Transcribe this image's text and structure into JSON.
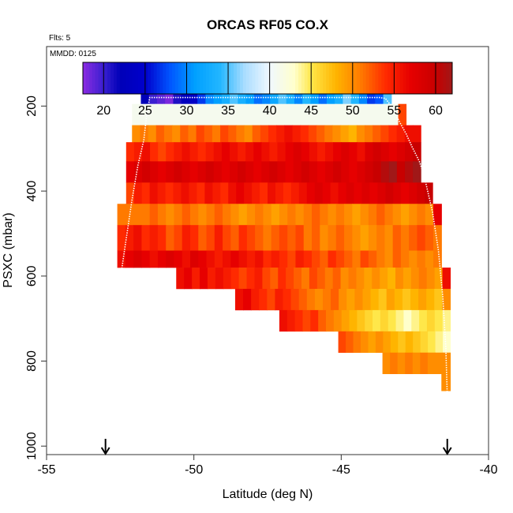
{
  "chart_data": {
    "type": "heatmap",
    "title": "ORCAS RF05 CO.X",
    "flights_label": "Flts: 5",
    "date_label": "MMDD: 0125",
    "xlabel": "Latitude (deg N)",
    "ylabel": "PSXC (mbar)",
    "xlim": [
      -55,
      -40
    ],
    "ylim": [
      1020,
      60
    ],
    "x_ticks": [
      -55,
      -50,
      -45,
      -40
    ],
    "y_ticks": [
      200,
      400,
      600,
      800,
      1000
    ],
    "colorbar": {
      "range": [
        17.5,
        62
      ],
      "ticks": [
        20,
        25,
        30,
        35,
        40,
        45,
        50,
        55,
        60
      ],
      "stops": [
        {
          "v": 17.5,
          "c": "#8B2BE2"
        },
        {
          "v": 20,
          "c": "#3A1FD0"
        },
        {
          "v": 22,
          "c": "#0000B8"
        },
        {
          "v": 25,
          "c": "#0000CC"
        },
        {
          "v": 28,
          "c": "#0055FF"
        },
        {
          "v": 31,
          "c": "#00A0FF"
        },
        {
          "v": 34,
          "c": "#22B6FF"
        },
        {
          "v": 37,
          "c": "#AADDFF"
        },
        {
          "v": 40,
          "c": "#F0F8FF"
        },
        {
          "v": 43,
          "c": "#FFFFCC"
        },
        {
          "v": 45,
          "c": "#FFE74A"
        },
        {
          "v": 48,
          "c": "#FFB400"
        },
        {
          "v": 51,
          "c": "#FF7A00"
        },
        {
          "v": 54,
          "c": "#FF2A00"
        },
        {
          "v": 57,
          "c": "#E60000"
        },
        {
          "v": 60,
          "c": "#C80000"
        },
        {
          "v": 62,
          "c": "#A01818"
        }
      ]
    },
    "arrows_at_latitude": [
      -53.0,
      -41.4
    ],
    "bands": [
      {
        "p": [
          165,
          195
        ],
        "lat_range": [
          -51.8,
          -43.3
        ],
        "values": [
          22,
          20,
          19,
          18,
          21,
          23,
          24,
          27,
          30,
          31,
          33,
          35,
          33,
          31,
          29,
          30,
          32,
          35,
          33,
          30,
          34,
          31,
          29,
          31,
          33,
          36,
          34,
          30,
          27,
          28,
          35
        ]
      },
      {
        "p": [
          195,
          245
        ],
        "lat_range": [
          -52.1,
          -42.8
        ],
        "values": [
          41,
          41,
          41,
          41,
          41,
          41,
          41,
          41,
          41,
          41,
          41,
          41,
          41,
          41,
          41,
          41,
          41,
          41,
          41,
          41,
          41,
          41,
          41,
          41,
          41,
          41,
          41,
          41,
          41,
          41,
          41,
          41,
          41,
          41,
          53
        ]
      },
      {
        "p": [
          245,
          285
        ],
        "lat_range": [
          -52.1,
          -42.3
        ],
        "values": [
          50,
          51,
          50,
          52,
          51,
          50,
          52,
          51,
          53,
          52,
          51,
          53,
          52,
          51,
          50,
          52,
          53,
          54,
          55,
          56,
          55,
          54,
          53,
          52,
          51,
          50,
          49,
          48,
          50,
          51,
          52,
          53,
          54,
          55,
          56,
          56
        ]
      },
      {
        "p": [
          285,
          330
        ],
        "lat_range": [
          -52.3,
          -42.3
        ],
        "values": [
          54,
          55,
          56,
          54,
          53,
          54,
          55,
          56,
          55,
          54,
          55,
          56,
          57,
          56,
          55,
          56,
          57,
          56,
          55,
          56,
          57,
          58,
          57,
          56,
          55,
          56,
          57,
          58,
          57,
          56,
          58,
          59,
          58,
          57,
          58,
          59,
          60
        ]
      },
      {
        "p": [
          330,
          380
        ],
        "lat_range": [
          -52.3,
          -42.3
        ],
        "values": [
          57,
          58,
          59,
          58,
          57,
          58,
          59,
          58,
          57,
          58,
          59,
          58,
          57,
          58,
          59,
          58,
          57,
          58,
          59,
          58,
          57,
          58,
          59,
          58,
          57,
          58,
          59,
          58,
          57,
          58,
          59,
          60,
          61,
          62,
          60,
          61,
          62
        ]
      },
      {
        "p": [
          380,
          430
        ],
        "lat_range": [
          -52.3,
          -41.9
        ],
        "values": [
          53,
          55,
          54,
          56,
          55,
          54,
          55,
          56,
          55,
          54,
          56,
          55,
          54,
          56,
          57,
          56,
          55,
          54,
          56,
          55,
          54,
          55,
          56,
          57,
          58,
          57,
          56,
          57,
          58,
          57,
          58,
          57,
          58,
          59,
          58,
          57,
          58,
          59,
          60
        ]
      },
      {
        "p": [
          430,
          480
        ],
        "lat_range": [
          -52.6,
          -41.6
        ],
        "values": [
          51,
          51,
          51,
          51,
          52,
          51,
          50,
          51,
          52,
          51,
          50,
          51,
          52,
          51,
          50,
          49,
          50,
          51,
          50,
          49,
          50,
          51,
          50,
          51,
          52,
          51,
          50,
          51,
          50,
          49,
          50,
          51,
          52,
          51,
          50,
          49,
          50,
          51,
          50,
          57
        ]
      },
      {
        "p": [
          480,
          540
        ],
        "lat_range": [
          -52.6,
          -41.6
        ],
        "values": [
          54,
          55,
          56,
          54,
          55,
          54,
          52,
          53,
          55,
          54,
          52,
          53,
          55,
          53,
          52,
          54,
          53,
          52,
          51,
          52,
          53,
          52,
          53,
          51,
          52,
          50,
          51,
          52,
          51,
          50,
          49,
          50,
          51,
          50,
          52,
          51,
          52,
          53,
          52,
          51
        ]
      },
      {
        "p": [
          540,
          580
        ],
        "lat_range": [
          -52.6,
          -41.6
        ],
        "values": [
          56,
          57,
          58,
          57,
          56,
          57,
          58,
          57,
          56,
          58,
          57,
          56,
          55,
          56,
          57,
          56,
          55,
          56,
          54,
          55,
          54,
          53,
          55,
          54,
          53,
          52,
          54,
          53,
          52,
          51,
          53,
          52,
          51,
          50,
          52,
          51,
          50,
          51,
          50,
          51
        ]
      },
      {
        "p": [
          580,
          630
        ],
        "lat_range": [
          -50.6,
          -41.3
        ],
        "values": [
          56,
          57,
          55,
          57,
          55,
          56,
          55,
          54,
          53,
          54,
          55,
          53,
          52,
          54,
          53,
          52,
          51,
          53,
          52,
          51,
          52,
          50,
          51,
          50,
          49,
          50,
          49,
          48,
          50,
          49,
          50,
          51,
          50,
          49,
          56
        ]
      },
      {
        "p": [
          630,
          680
        ],
        "lat_range": [
          -48.6,
          -41.3
        ],
        "values": [
          56,
          57,
          55,
          54,
          53,
          55,
          54,
          53,
          52,
          51,
          50,
          51,
          52,
          50,
          49,
          50,
          49,
          48,
          47,
          49,
          48,
          47,
          48,
          49,
          48,
          47,
          50
        ]
      },
      {
        "p": [
          680,
          730
        ],
        "lat_range": [
          -47.1,
          -41.3
        ],
        "values": [
          56,
          55,
          54,
          53,
          54,
          52,
          51,
          50,
          49,
          48,
          47,
          46,
          45,
          46,
          45,
          44,
          43,
          44,
          45,
          46,
          45,
          44
        ]
      },
      {
        "p": [
          730,
          780
        ],
        "lat_range": [
          -45.1,
          -41.3
        ],
        "values": [
          53,
          52,
          51,
          50,
          49,
          50,
          49,
          48,
          47,
          48,
          47,
          46,
          45,
          44,
          43
        ]
      },
      {
        "p": [
          780,
          830
        ],
        "lat_range": [
          -43.6,
          -41.3
        ],
        "values": [
          50,
          51,
          50,
          51,
          50,
          51,
          50,
          50,
          50
        ]
      },
      {
        "p": [
          830,
          870
        ],
        "lat_range": [
          -41.6,
          -41.3
        ],
        "values": [
          50
        ]
      }
    ],
    "flight_track": {
      "lat": [
        -52.5,
        -52.4,
        -52.25,
        -52.1,
        -51.9,
        -51.7,
        -51.6,
        -51.5,
        -50.7,
        -50.0,
        -49.4,
        -48.0,
        -47.2,
        -46.3,
        -45.3,
        -44.3,
        -43.7,
        -43.5,
        -43.3,
        -43.0,
        -42.8,
        -42.6,
        -42.35,
        -42.2,
        -41.9,
        -41.7,
        -41.55,
        -41.45,
        -41.4
      ],
      "p": [
        610,
        560,
        490,
        420,
        340,
        280,
        220,
        180,
        180,
        180,
        180,
        180,
        180,
        180,
        180,
        180,
        180,
        182,
        200,
        240,
        265,
        295,
        330,
        360,
        450,
        540,
        650,
        770,
        880
      ],
      "color": "#ffffff"
    }
  }
}
